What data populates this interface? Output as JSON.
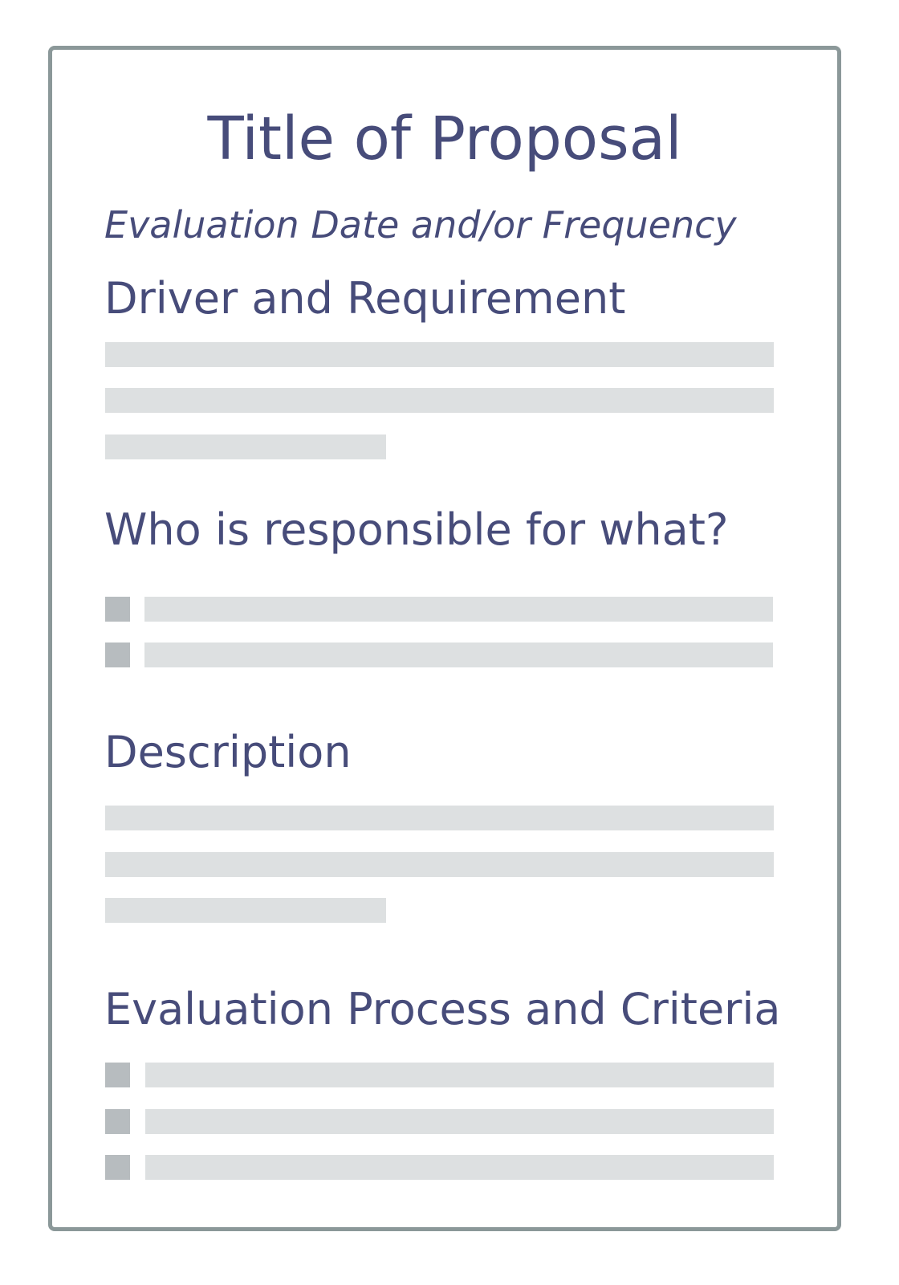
{
  "document": {
    "title": "Title of Proposal",
    "subtitle": "Evaluation Date and/or Frequency",
    "sections": [
      {
        "heading": "Driver and Requirement",
        "content_type": "paragraph",
        "lines": 3
      },
      {
        "heading": "Who is responsible for what?",
        "content_type": "bullet-list",
        "items": 2
      },
      {
        "heading": "Description",
        "content_type": "paragraph",
        "lines": 3
      },
      {
        "heading": "Evaluation Process and Criteria",
        "content_type": "bullet-list",
        "items": 3
      }
    ]
  },
  "colors": {
    "text": "#474c7a",
    "border": "#8b9899",
    "placeholder_line": "#dde0e1",
    "bullet": "#b7bcbf"
  }
}
